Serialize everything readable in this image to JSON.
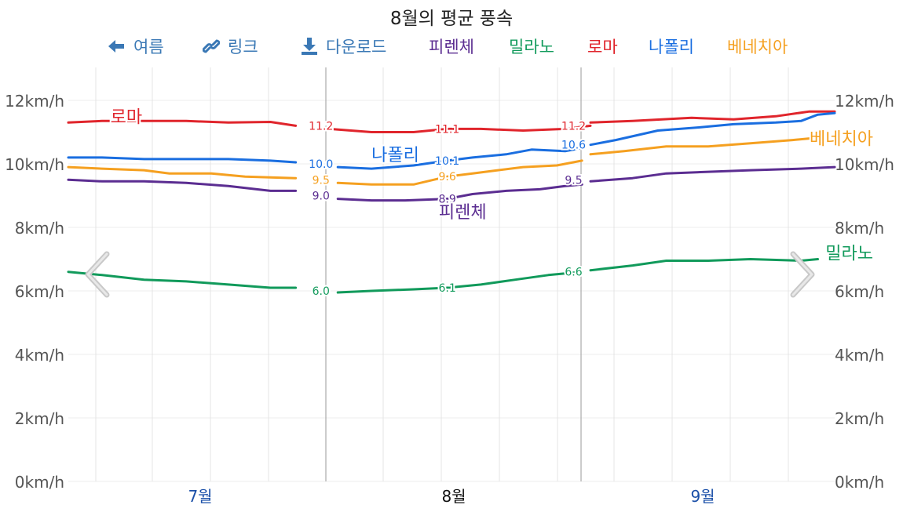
{
  "title": "8월의 평균 풍속",
  "toolbar": {
    "back_label": "여름",
    "link_label": "링크",
    "download_label": "다운로드"
  },
  "colors": {
    "toolbar": "#3a78b5",
    "firenze": "#5b2d91",
    "milano": "#119a5b",
    "roma": "#e0252c",
    "napoli": "#1a6ee0",
    "venezia": "#f5a020",
    "axis_text": "#555555",
    "month_label": "#1a4fa8",
    "month_active": "#111111"
  },
  "icons": {
    "back": "arrow-left-icon",
    "link": "link-icon",
    "download": "download-icon",
    "prev": "chevron-left-icon",
    "next": "chevron-right-icon"
  },
  "chart_data": {
    "type": "line",
    "title": "8월의 평균 풍속",
    "y_ticks": [
      "0km/h",
      "2km/h",
      "4km/h",
      "6km/h",
      "8km/h",
      "10km/h",
      "12km/h"
    ],
    "ylim": [
      0,
      13
    ],
    "months": [
      "7월",
      "8월",
      "9월"
    ],
    "active_month": "8월",
    "x_range_days": [
      1,
      92
    ],
    "legend_placement": "top",
    "grid": true,
    "series": [
      {
        "name": "로마",
        "key": "roma",
        "segments": [
          [
            [
              1,
              11.3
            ],
            [
              5,
              11.35
            ],
            [
              10,
              11.35
            ],
            [
              15,
              11.35
            ],
            [
              20,
              11.3
            ],
            [
              25,
              11.32
            ],
            [
              28,
              11.2
            ]
          ],
          [
            [
              32,
              11.1
            ],
            [
              37,
              11.0
            ],
            [
              42,
              11.0
            ],
            [
              46,
              11.1
            ],
            [
              50,
              11.1
            ],
            [
              55,
              11.05
            ],
            [
              60,
              11.1
            ],
            [
              63,
              11.2
            ]
          ],
          [
            [
              63,
              11.3
            ],
            [
              68,
              11.35
            ],
            [
              75,
              11.45
            ],
            [
              80,
              11.4
            ],
            [
              85,
              11.5
            ],
            [
              89,
              11.65
            ],
            [
              92,
              11.65
            ]
          ]
        ],
        "labels": [
          [
            31,
            11.2,
            "11.2"
          ],
          [
            46,
            11.1,
            "11.1"
          ],
          [
            61,
            11.2,
            "11.2"
          ]
        ]
      },
      {
        "name": "나폴리",
        "key": "napoli",
        "segments": [
          [
            [
              1,
              10.2
            ],
            [
              5,
              10.2
            ],
            [
              10,
              10.15
            ],
            [
              15,
              10.15
            ],
            [
              20,
              10.15
            ],
            [
              25,
              10.1
            ],
            [
              28,
              10.05
            ]
          ],
          [
            [
              33,
              9.9
            ],
            [
              37,
              9.85
            ],
            [
              42,
              9.95
            ],
            [
              46,
              10.1
            ],
            [
              49,
              10.2
            ],
            [
              53,
              10.3
            ],
            [
              56,
              10.45
            ],
            [
              60,
              10.4
            ],
            [
              62,
              10.5
            ]
          ],
          [
            [
              63,
              10.6
            ],
            [
              66,
              10.75
            ],
            [
              71,
              11.05
            ],
            [
              76,
              11.15
            ],
            [
              80,
              11.25
            ],
            [
              85,
              11.3
            ],
            [
              88,
              11.35
            ],
            [
              90,
              11.55
            ],
            [
              92,
              11.6
            ]
          ]
        ],
        "labels": [
          [
            31,
            10.0,
            "10.0"
          ],
          [
            46,
            10.1,
            "10.1"
          ],
          [
            61,
            10.6,
            "10.6"
          ]
        ]
      },
      {
        "name": "베네치아",
        "key": "venezia",
        "segments": [
          [
            [
              1,
              9.9
            ],
            [
              5,
              9.85
            ],
            [
              10,
              9.8
            ],
            [
              13,
              9.7
            ],
            [
              18,
              9.7
            ],
            [
              22,
              9.6
            ],
            [
              28,
              9.55
            ]
          ],
          [
            [
              33,
              9.4
            ],
            [
              37,
              9.35
            ],
            [
              42,
              9.35
            ],
            [
              46,
              9.6
            ],
            [
              49,
              9.7
            ],
            [
              52,
              9.8
            ],
            [
              55,
              9.9
            ],
            [
              59,
              9.95
            ],
            [
              62,
              10.1
            ]
          ],
          [
            [
              63,
              10.3
            ],
            [
              67,
              10.4
            ],
            [
              72,
              10.55
            ],
            [
              77,
              10.55
            ],
            [
              82,
              10.65
            ],
            [
              87,
              10.75
            ],
            [
              89,
              10.8
            ]
          ]
        ],
        "labels": [
          [
            31,
            9.5,
            "9.5"
          ],
          [
            46,
            9.6,
            "9.6"
          ]
        ]
      },
      {
        "name": "피렌체",
        "key": "firenze",
        "segments": [
          [
            [
              1,
              9.5
            ],
            [
              5,
              9.45
            ],
            [
              10,
              9.45
            ],
            [
              15,
              9.4
            ],
            [
              20,
              9.3
            ],
            [
              25,
              9.15
            ],
            [
              28,
              9.15
            ]
          ],
          [
            [
              33,
              8.9
            ],
            [
              37,
              8.85
            ],
            [
              41,
              8.85
            ],
            [
              46,
              8.9
            ],
            [
              49,
              9.05
            ],
            [
              53,
              9.15
            ],
            [
              57,
              9.2
            ],
            [
              60,
              9.3
            ],
            [
              62,
              9.35
            ]
          ],
          [
            [
              63,
              9.45
            ],
            [
              68,
              9.55
            ],
            [
              72,
              9.7
            ],
            [
              77,
              9.75
            ],
            [
              82,
              9.8
            ],
            [
              88,
              9.85
            ],
            [
              92,
              9.9
            ]
          ]
        ],
        "labels": [
          [
            31,
            9.0,
            "9.0"
          ],
          [
            46,
            8.9,
            "8.9"
          ],
          [
            61,
            9.5,
            "9.5"
          ]
        ]
      },
      {
        "name": "밀라노",
        "key": "milano",
        "segments": [
          [
            [
              1,
              6.6
            ],
            [
              5,
              6.5
            ],
            [
              10,
              6.35
            ],
            [
              15,
              6.3
            ],
            [
              20,
              6.2
            ],
            [
              25,
              6.1
            ],
            [
              28,
              6.1
            ]
          ],
          [
            [
              33,
              5.95
            ],
            [
              37,
              6.0
            ],
            [
              42,
              6.05
            ],
            [
              46,
              6.1
            ],
            [
              50,
              6.2
            ],
            [
              54,
              6.35
            ],
            [
              58,
              6.5
            ],
            [
              62,
              6.6
            ]
          ],
          [
            [
              63,
              6.65
            ],
            [
              68,
              6.8
            ],
            [
              72,
              6.95
            ],
            [
              77,
              6.95
            ],
            [
              82,
              7.0
            ],
            [
              88,
              6.95
            ],
            [
              90,
              7.0
            ]
          ]
        ],
        "labels": [
          [
            31,
            6.0,
            "6.0"
          ],
          [
            46,
            6.1,
            "6.1"
          ],
          [
            61,
            6.6,
            "6.6"
          ]
        ]
      }
    ],
    "end_labels": [
      {
        "text": "로마",
        "key": "roma",
        "x": 6,
        "y": 11.5
      },
      {
        "text": "나폴리",
        "key": "napoli",
        "x": 37,
        "y": 10.3
      },
      {
        "text": "피렌체",
        "key": "firenze",
        "x": 45,
        "y": 8.5
      },
      {
        "text": "베네치아",
        "key": "venezia",
        "x": 90,
        "y": 10.8
      },
      {
        "text": "밀라노",
        "key": "milano",
        "x": 90,
        "y": 7.2
      }
    ]
  }
}
